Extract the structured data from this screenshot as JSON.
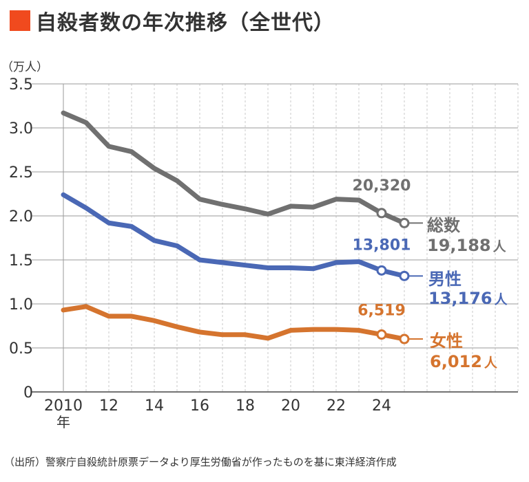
{
  "title": "自殺者数の年次推移（全世代）",
  "title_marker_color": "#f04a1e",
  "source": "（出所）警察庁自殺統計原票データより厚生労働省が作ったものを基に東洋経済作成",
  "chart_data": {
    "type": "line",
    "title": "自殺者数の年次推移（全世代）",
    "unit_label": "（万人）",
    "x": [
      2010,
      2011,
      2012,
      2013,
      2014,
      2015,
      2016,
      2017,
      2018,
      2019,
      2020,
      2021,
      2022,
      2023,
      2024,
      2025
    ],
    "x_tick_values": [
      2010,
      2012,
      2014,
      2016,
      2018,
      2020,
      2022,
      2024
    ],
    "x_tick_labels": [
      "2010",
      "12",
      "14",
      "16",
      "18",
      "20",
      "22",
      "24"
    ],
    "x_first_suffix": "年",
    "xlim": [
      2010,
      2030
    ],
    "ylim": [
      0,
      3.5
    ],
    "y_ticks": [
      "0",
      "0.5",
      "1.0",
      "1.5",
      "2.0",
      "2.5",
      "3.0",
      "3.5"
    ],
    "grid": true,
    "series": [
      {
        "name": "総数",
        "color": "#707070",
        "values": [
          3.17,
          3.06,
          2.79,
          2.73,
          2.54,
          2.4,
          2.19,
          2.13,
          2.08,
          2.02,
          2.11,
          2.1,
          2.19,
          2.18,
          2.032,
          1.9188
        ],
        "point_labels": [
          {
            "index": 14,
            "text": "20,320"
          }
        ],
        "end_value": "19,188",
        "end_unit": "人"
      },
      {
        "name": "男性",
        "color": "#4a68b5",
        "values": [
          2.24,
          2.09,
          1.92,
          1.88,
          1.72,
          1.66,
          1.5,
          1.47,
          1.44,
          1.41,
          1.41,
          1.4,
          1.47,
          1.48,
          1.38,
          1.3176
        ],
        "point_labels": [
          {
            "index": 14,
            "text": "13,801"
          }
        ],
        "end_value": "13,176",
        "end_unit": "人"
      },
      {
        "name": "女性",
        "color": "#d5742e",
        "values": [
          0.93,
          0.97,
          0.86,
          0.86,
          0.81,
          0.74,
          0.68,
          0.65,
          0.65,
          0.61,
          0.7,
          0.71,
          0.71,
          0.7,
          0.6519,
          0.6012
        ],
        "point_labels": [
          {
            "index": 14,
            "text": "6,519"
          }
        ],
        "end_value": "6,012",
        "end_unit": "人"
      }
    ]
  }
}
